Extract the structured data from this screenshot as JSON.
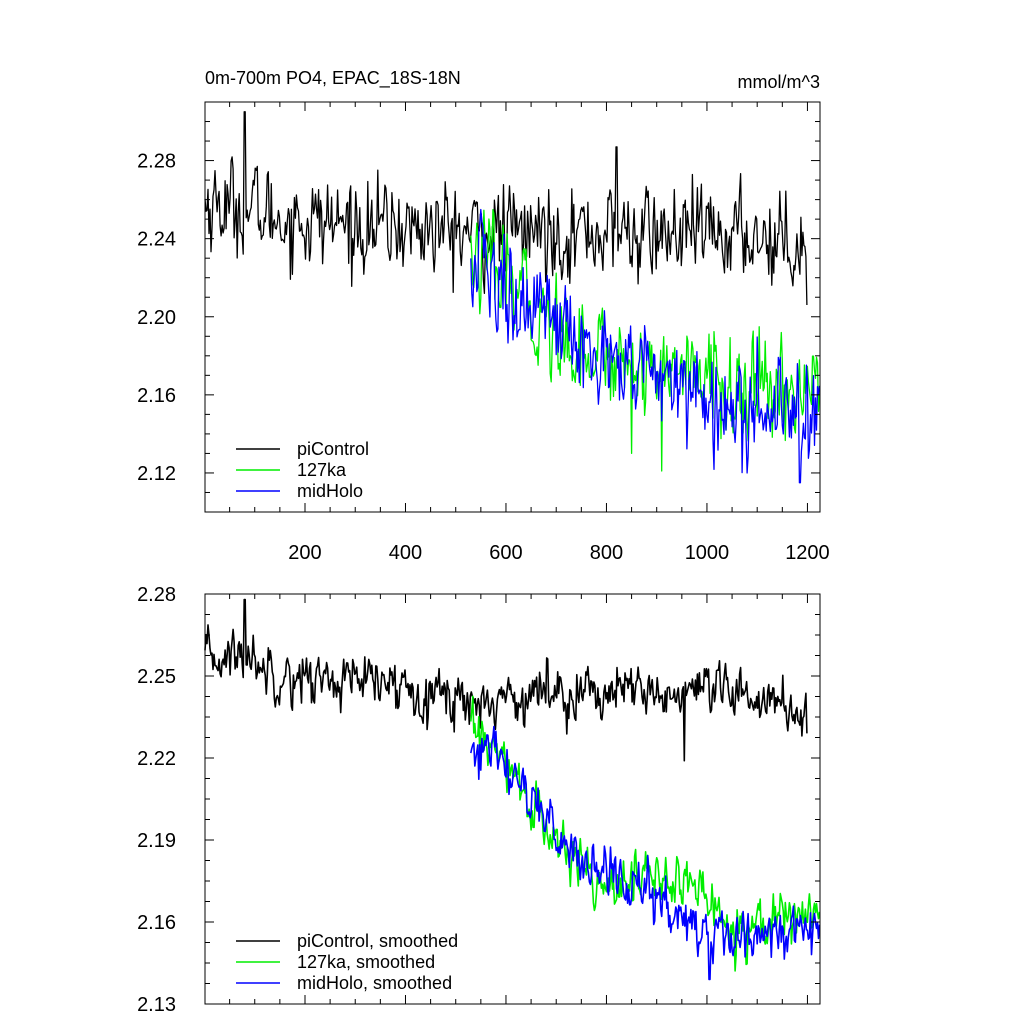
{
  "chart_data": [
    {
      "type": "line",
      "title": "0m-700m PO4, EPAC_18S-18N",
      "units": "mmol/m^3",
      "xlabel": "",
      "ylabel": "",
      "xlim": [
        1,
        1225
      ],
      "ylim": [
        2.1,
        2.31
      ],
      "x_ticks": [
        200,
        400,
        600,
        800,
        1000,
        1200
      ],
      "y_ticks": [
        2.12,
        2.16,
        2.2,
        2.24,
        2.28
      ],
      "y_tick_labels": [
        "2.12",
        "2.16",
        "2.20",
        "2.24",
        "2.28"
      ],
      "legend_position": "bottom-left",
      "series": [
        {
          "name": "piControl",
          "color": "#000000",
          "x_range": [
            1,
            1200
          ],
          "segments": [
            {
              "x": 1,
              "y": 2.258
            },
            {
              "x": 80,
              "y": 2.256
            },
            {
              "x": 160,
              "y": 2.25
            },
            {
              "x": 300,
              "y": 2.247
            },
            {
              "x": 450,
              "y": 2.245
            },
            {
              "x": 530,
              "y": 2.243
            },
            {
              "x": 700,
              "y": 2.244
            },
            {
              "x": 900,
              "y": 2.242
            },
            {
              "x": 1100,
              "y": 2.242
            },
            {
              "x": 1200,
              "y": 2.238
            }
          ],
          "noise_sd": 0.011,
          "spikes": [
            {
              "x": 80,
              "y": 2.305
            },
            {
              "x": 820,
              "y": 2.287
            },
            {
              "x": 1200,
              "y": 2.206
            }
          ]
        },
        {
          "name": "127ka",
          "color": "#00ee00",
          "x_range": [
            530,
            1225
          ],
          "segments": [
            {
              "x": 530,
              "y": 2.232
            },
            {
              "x": 600,
              "y": 2.218
            },
            {
              "x": 700,
              "y": 2.192
            },
            {
              "x": 800,
              "y": 2.18
            },
            {
              "x": 900,
              "y": 2.176
            },
            {
              "x": 1000,
              "y": 2.168
            },
            {
              "x": 1100,
              "y": 2.158
            },
            {
              "x": 1225,
              "y": 2.168
            }
          ],
          "noise_sd": 0.012,
          "spikes": [
            {
              "x": 910,
              "y": 2.121
            },
            {
              "x": 850,
              "y": 2.13
            }
          ]
        },
        {
          "name": "midHolo",
          "color": "#0000ff",
          "x_range": [
            530,
            1225
          ],
          "segments": [
            {
              "x": 530,
              "y": 2.225
            },
            {
              "x": 600,
              "y": 2.218
            },
            {
              "x": 700,
              "y": 2.192
            },
            {
              "x": 800,
              "y": 2.178
            },
            {
              "x": 900,
              "y": 2.168
            },
            {
              "x": 1000,
              "y": 2.158
            },
            {
              "x": 1100,
              "y": 2.155
            },
            {
              "x": 1225,
              "y": 2.158
            }
          ],
          "noise_sd": 0.013,
          "spikes": [
            {
              "x": 1185,
              "y": 2.115
            },
            {
              "x": 1080,
              "y": 2.12
            }
          ]
        }
      ]
    },
    {
      "type": "line",
      "title": "",
      "xlabel": "",
      "ylabel": "",
      "xlim": [
        1,
        1225
      ],
      "ylim": [
        2.13,
        2.28
      ],
      "x_ticks": [
        200,
        400,
        600,
        800,
        1000,
        1200
      ],
      "y_ticks": [
        2.13,
        2.16,
        2.19,
        2.22,
        2.25,
        2.28
      ],
      "y_tick_labels": [
        "2.13",
        "2.16",
        "2.19",
        "2.22",
        "2.25",
        "2.28"
      ],
      "legend_position": "bottom-left",
      "series": [
        {
          "name": "piControl, smoothed",
          "color": "#000000",
          "x_range": [
            1,
            1200
          ],
          "segments": [
            {
              "x": 1,
              "y": 2.256
            },
            {
              "x": 80,
              "y": 2.258
            },
            {
              "x": 160,
              "y": 2.25
            },
            {
              "x": 300,
              "y": 2.248
            },
            {
              "x": 450,
              "y": 2.245
            },
            {
              "x": 530,
              "y": 2.24
            },
            {
              "x": 700,
              "y": 2.245
            },
            {
              "x": 900,
              "y": 2.243
            },
            {
              "x": 1100,
              "y": 2.243
            },
            {
              "x": 1200,
              "y": 2.236
            }
          ],
          "noise_sd": 0.0045,
          "spikes": [
            {
              "x": 80,
              "y": 2.278
            },
            {
              "x": 955,
              "y": 2.219
            },
            {
              "x": 1200,
              "y": 2.229
            }
          ]
        },
        {
          "name": "127ka, smoothed",
          "color": "#00ee00",
          "x_range": [
            530,
            1225
          ],
          "segments": [
            {
              "x": 530,
              "y": 2.232
            },
            {
              "x": 620,
              "y": 2.212
            },
            {
              "x": 700,
              "y": 2.188
            },
            {
              "x": 780,
              "y": 2.176
            },
            {
              "x": 900,
              "y": 2.176
            },
            {
              "x": 1000,
              "y": 2.171
            },
            {
              "x": 1040,
              "y": 2.158
            },
            {
              "x": 1120,
              "y": 2.161
            },
            {
              "x": 1225,
              "y": 2.165
            }
          ],
          "noise_sd": 0.0045,
          "spikes": []
        },
        {
          "name": "midHolo, smoothed",
          "color": "#0000ff",
          "x_range": [
            530,
            1225
          ],
          "segments": [
            {
              "x": 530,
              "y": 2.224
            },
            {
              "x": 620,
              "y": 2.215
            },
            {
              "x": 700,
              "y": 2.19
            },
            {
              "x": 780,
              "y": 2.18
            },
            {
              "x": 900,
              "y": 2.168
            },
            {
              "x": 1000,
              "y": 2.156
            },
            {
              "x": 1100,
              "y": 2.155
            },
            {
              "x": 1225,
              "y": 2.158
            }
          ],
          "noise_sd": 0.0045,
          "spikes": [
            {
              "x": 1005,
              "y": 2.139
            }
          ]
        }
      ]
    }
  ]
}
